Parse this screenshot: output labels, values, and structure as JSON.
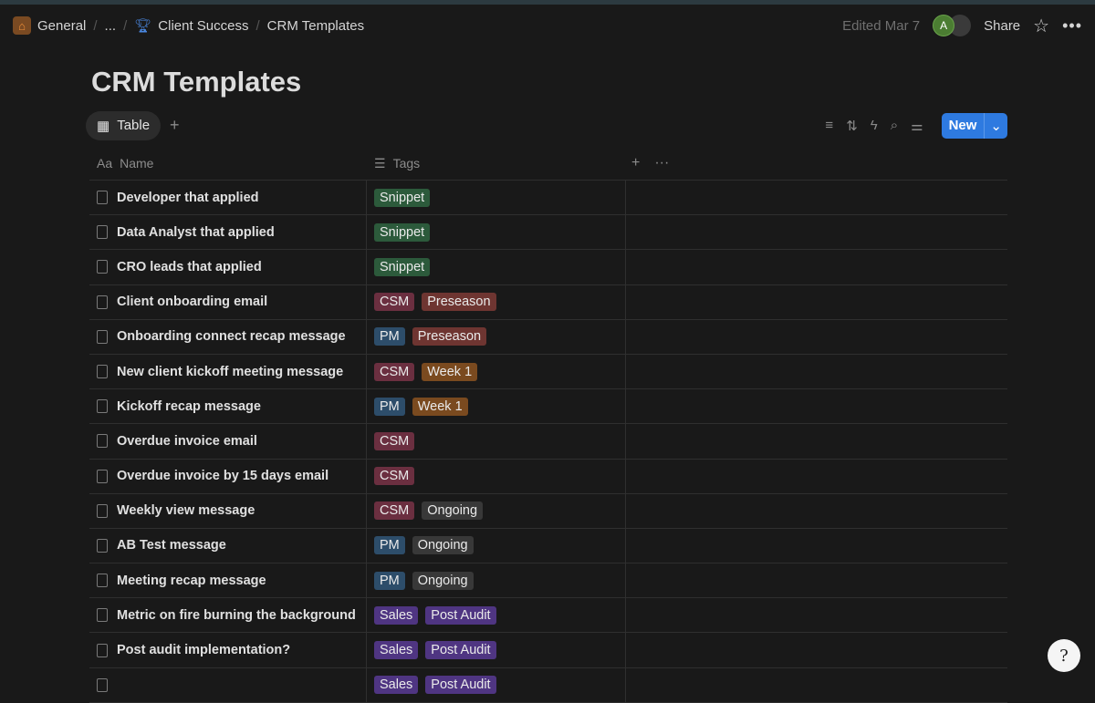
{
  "breadcrumb": {
    "items": [
      "General",
      "...",
      "Client Success",
      "CRM Templates"
    ]
  },
  "header": {
    "edited": "Edited Mar 7",
    "avatar_initial": "A",
    "share": "Share"
  },
  "page": {
    "title": "CRM Templates"
  },
  "view": {
    "tab": "Table",
    "new": "New"
  },
  "columns": {
    "name": "Name",
    "tags": "Tags"
  },
  "tag_colors": {
    "Snippet": "#2c5a3b",
    "CSM": "#6b2f40",
    "Preseason": "#6e3531",
    "PM": "#2d4d6a",
    "Week 1": "#7a4a1f",
    "Ongoing": "#383838",
    "Sales": "#4f3582",
    "Post Audit": "#4f3582"
  },
  "rows": [
    {
      "name": "Developer that applied",
      "tags": [
        "Snippet"
      ]
    },
    {
      "name": "Data Analyst that applied",
      "tags": [
        "Snippet"
      ]
    },
    {
      "name": "CRO leads that applied",
      "tags": [
        "Snippet"
      ]
    },
    {
      "name": "Client onboarding email",
      "tags": [
        "CSM",
        "Preseason"
      ]
    },
    {
      "name": "Onboarding connect recap message",
      "tags": [
        "PM",
        "Preseason"
      ]
    },
    {
      "name": "New client kickoff meeting message",
      "tags": [
        "CSM",
        "Week 1"
      ]
    },
    {
      "name": "Kickoff recap message",
      "tags": [
        "PM",
        "Week 1"
      ]
    },
    {
      "name": "Overdue invoice email",
      "tags": [
        "CSM"
      ]
    },
    {
      "name": "Overdue invoice by 15 days email",
      "tags": [
        "CSM"
      ]
    },
    {
      "name": "Weekly view message",
      "tags": [
        "CSM",
        "Ongoing"
      ]
    },
    {
      "name": "AB Test message",
      "tags": [
        "PM",
        "Ongoing"
      ]
    },
    {
      "name": "Meeting recap message",
      "tags": [
        "PM",
        "Ongoing"
      ]
    },
    {
      "name": "Metric on fire burning the background",
      "tags": [
        "Sales",
        "Post Audit"
      ]
    },
    {
      "name": "Post audit implementation?",
      "tags": [
        "Sales",
        "Post Audit"
      ]
    },
    {
      "name": "",
      "tags": [
        "Sales",
        "Post Audit"
      ]
    }
  ]
}
